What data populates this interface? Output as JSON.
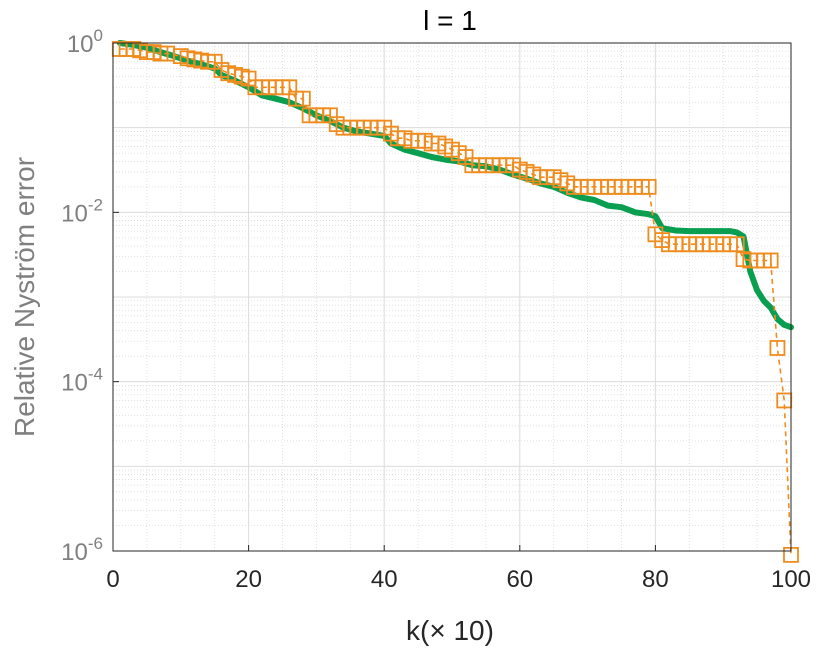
{
  "chart_data": {
    "type": "line",
    "title": "l = 1",
    "xlabel": "k(× 10)",
    "ylabel": "Relative Nyström error",
    "xlim": [
      0,
      100
    ],
    "ylim_log10": [
      -6,
      0
    ],
    "yscale": "log",
    "grid": true,
    "minor_grid": true,
    "x_ticks": [
      0,
      20,
      40,
      60,
      80,
      100
    ],
    "y_ticks": [
      {
        "base": "10",
        "exp": "0",
        "log10": 0
      },
      {
        "base": "10",
        "exp": "-2",
        "log10": -2
      },
      {
        "base": "10",
        "exp": "-4",
        "log10": -4
      },
      {
        "base": "10",
        "exp": "-6",
        "log10": -6
      }
    ],
    "series": [
      {
        "color": "#0a9e50",
        "style": "solid-thick",
        "points": [
          [
            1,
            1.0
          ],
          [
            3,
            0.95
          ],
          [
            5,
            0.88
          ],
          [
            7,
            0.78
          ],
          [
            9,
            0.7
          ],
          [
            11,
            0.62
          ],
          [
            13,
            0.56
          ],
          [
            15,
            0.5
          ],
          [
            16,
            0.42
          ],
          [
            18,
            0.36
          ],
          [
            20,
            0.3
          ],
          [
            22,
            0.24
          ],
          [
            24,
            0.22
          ],
          [
            26,
            0.2
          ],
          [
            28,
            0.17
          ],
          [
            30,
            0.14
          ],
          [
            32,
            0.12
          ],
          [
            34,
            0.1
          ],
          [
            36,
            0.09
          ],
          [
            38,
            0.085
          ],
          [
            40,
            0.08
          ],
          [
            41,
            0.065
          ],
          [
            43,
            0.055
          ],
          [
            45,
            0.05
          ],
          [
            47,
            0.045
          ],
          [
            49,
            0.042
          ],
          [
            51,
            0.04
          ],
          [
            53,
            0.036
          ],
          [
            55,
            0.035
          ],
          [
            57,
            0.032
          ],
          [
            59,
            0.028
          ],
          [
            61,
            0.025
          ],
          [
            63,
            0.022
          ],
          [
            65,
            0.02
          ],
          [
            67,
            0.017
          ],
          [
            69,
            0.015
          ],
          [
            71,
            0.014
          ],
          [
            73,
            0.012
          ],
          [
            75,
            0.0115
          ],
          [
            77,
            0.01
          ],
          [
            79,
            0.0095
          ],
          [
            80,
            0.009
          ],
          [
            81,
            0.0065
          ],
          [
            83,
            0.0061
          ],
          [
            85,
            0.006
          ],
          [
            87,
            0.006
          ],
          [
            89,
            0.006
          ],
          [
            91,
            0.006
          ],
          [
            92,
            0.0058
          ],
          [
            93,
            0.0052
          ],
          [
            94,
            0.002
          ],
          [
            95,
            0.0012
          ],
          [
            96,
            0.0009
          ],
          [
            97,
            0.00075
          ],
          [
            98,
            0.00055
          ],
          [
            99,
            0.00047
          ],
          [
            100,
            0.00044
          ]
        ]
      },
      {
        "color": "#f08c1e",
        "style": "dashed-square-markers",
        "points": [
          [
            1,
            0.85
          ],
          [
            2,
            0.85
          ],
          [
            3,
            0.85
          ],
          [
            4,
            0.82
          ],
          [
            5,
            0.78
          ],
          [
            6,
            0.78
          ],
          [
            7,
            0.75
          ],
          [
            8,
            0.75
          ],
          [
            10,
            0.7
          ],
          [
            11,
            0.66
          ],
          [
            12,
            0.64
          ],
          [
            13,
            0.62
          ],
          [
            14,
            0.6
          ],
          [
            15,
            0.6
          ],
          [
            16,
            0.48
          ],
          [
            17,
            0.44
          ],
          [
            18,
            0.42
          ],
          [
            19,
            0.4
          ],
          [
            20,
            0.38
          ],
          [
            21,
            0.3
          ],
          [
            22,
            0.3
          ],
          [
            23,
            0.3
          ],
          [
            24,
            0.3
          ],
          [
            25,
            0.3
          ],
          [
            26,
            0.3
          ],
          [
            27,
            0.22
          ],
          [
            28,
            0.22
          ],
          [
            29,
            0.14
          ],
          [
            30,
            0.14
          ],
          [
            31,
            0.14
          ],
          [
            32,
            0.14
          ],
          [
            33,
            0.11
          ],
          [
            34,
            0.1
          ],
          [
            35,
            0.1
          ],
          [
            36,
            0.1
          ],
          [
            37,
            0.1
          ],
          [
            38,
            0.1
          ],
          [
            39,
            0.1
          ],
          [
            40,
            0.1
          ],
          [
            41,
            0.085
          ],
          [
            42,
            0.075
          ],
          [
            43,
            0.075
          ],
          [
            44,
            0.07
          ],
          [
            45,
            0.07
          ],
          [
            46,
            0.07
          ],
          [
            47,
            0.065
          ],
          [
            48,
            0.065
          ],
          [
            49,
            0.06
          ],
          [
            50,
            0.055
          ],
          [
            51,
            0.05
          ],
          [
            52,
            0.045
          ],
          [
            53,
            0.036
          ],
          [
            54,
            0.036
          ],
          [
            55,
            0.036
          ],
          [
            56,
            0.036
          ],
          [
            57,
            0.036
          ],
          [
            58,
            0.036
          ],
          [
            59,
            0.036
          ],
          [
            60,
            0.032
          ],
          [
            61,
            0.03
          ],
          [
            62,
            0.028
          ],
          [
            63,
            0.026
          ],
          [
            64,
            0.026
          ],
          [
            65,
            0.026
          ],
          [
            66,
            0.024
          ],
          [
            67,
            0.022
          ],
          [
            68,
            0.02
          ],
          [
            69,
            0.02
          ],
          [
            70,
            0.02
          ],
          [
            71,
            0.02
          ],
          [
            72,
            0.02
          ],
          [
            73,
            0.02
          ],
          [
            74,
            0.02
          ],
          [
            75,
            0.02
          ],
          [
            76,
            0.02
          ],
          [
            77,
            0.02
          ],
          [
            78,
            0.02
          ],
          [
            79,
            0.02
          ],
          [
            80,
            0.0055
          ],
          [
            81,
            0.0047
          ],
          [
            82,
            0.0042
          ],
          [
            83,
            0.0042
          ],
          [
            84,
            0.0042
          ],
          [
            85,
            0.0042
          ],
          [
            86,
            0.0042
          ],
          [
            87,
            0.0042
          ],
          [
            88,
            0.0042
          ],
          [
            89,
            0.0042
          ],
          [
            90,
            0.0042
          ],
          [
            91,
            0.0042
          ],
          [
            92,
            0.0042
          ],
          [
            93,
            0.0028
          ],
          [
            94,
            0.0027
          ],
          [
            95,
            0.0027
          ],
          [
            96,
            0.0027
          ],
          [
            97,
            0.0027
          ],
          [
            98,
            0.00025
          ],
          [
            99,
            6e-05
          ],
          [
            100,
            9e-07
          ]
        ]
      }
    ]
  }
}
